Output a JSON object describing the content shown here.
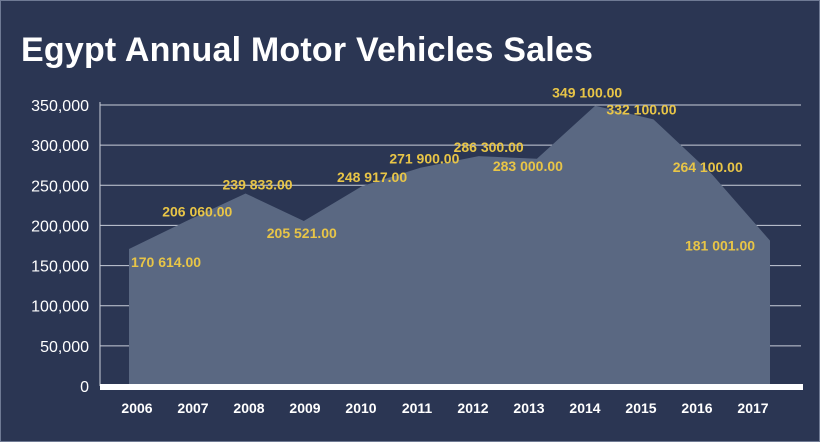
{
  "chart_data": {
    "type": "area",
    "title": "Egypt Annual Motor Vehicles Sales",
    "categories": [
      "2006",
      "2007",
      "2008",
      "2009",
      "2010",
      "2011",
      "2012",
      "2013",
      "2014",
      "2015",
      "2016",
      "2017"
    ],
    "values": [
      170614,
      206060,
      239833,
      205521,
      248917,
      271900,
      286300,
      283000,
      349100,
      332100,
      264100,
      181001
    ],
    "data_labels": [
      "170 614.00",
      "206 060.00",
      "239 833.00",
      "205 521.00",
      "248 917.00",
      "271 900.00",
      "286 300.00",
      "283 000.00",
      "349 100.00",
      "332 100.00",
      "264 100.00",
      "181 001.00"
    ],
    "y_ticks": [
      "0",
      "50,000",
      "100,000",
      "150,000",
      "200,000",
      "250,000",
      "300,000",
      "350,000"
    ],
    "ylim": [
      0,
      350000
    ],
    "grid": true,
    "colors": {
      "background": "#2b3653",
      "area": "#5a6882",
      "grid": "#c9ced9",
      "axis": "#ffffff",
      "label": "#e8c547",
      "text": "#ffffff"
    }
  }
}
